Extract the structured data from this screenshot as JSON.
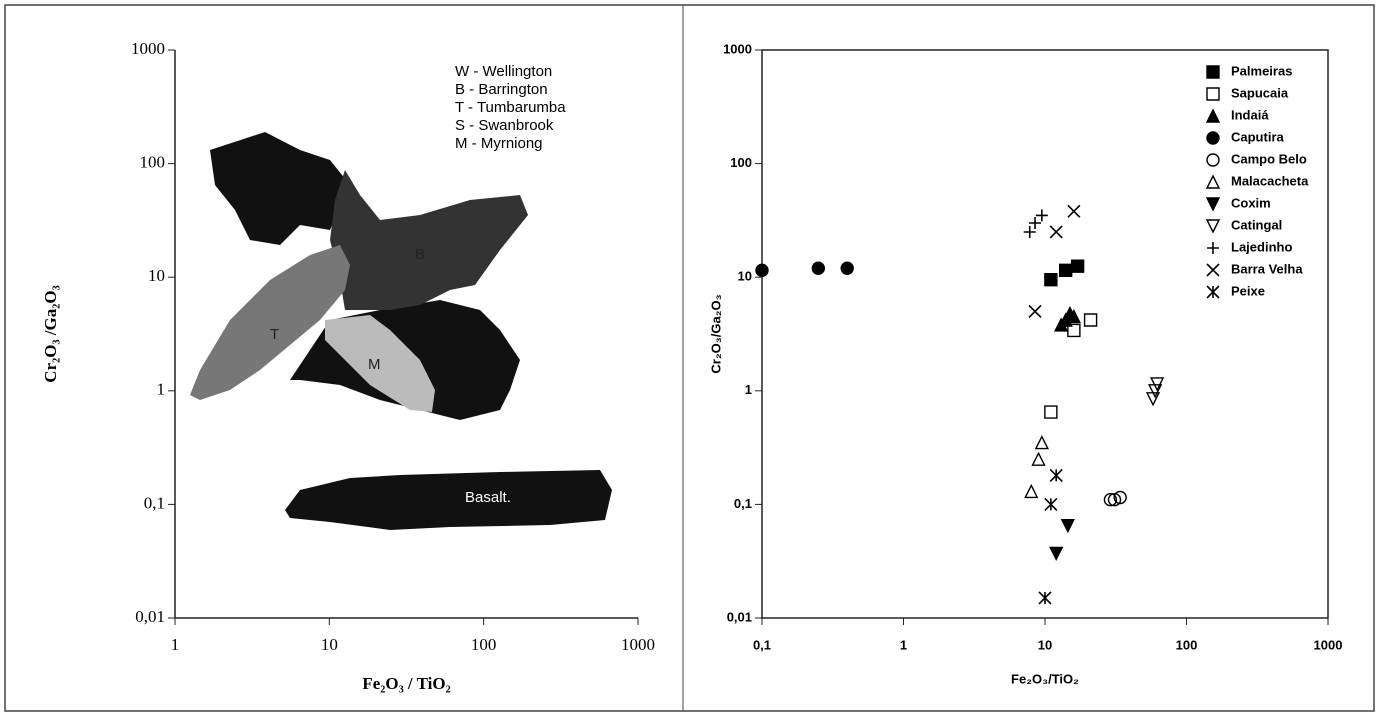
{
  "chart_data": [
    {
      "type": "field",
      "xlabel": "Fe₂O₃ / TiO₂",
      "ylabel": "Cr₂O₃ /Ga₂O₃",
      "xscale": "log",
      "yscale": "log",
      "xlim": [
        1,
        1000
      ],
      "ylim": [
        0.01,
        1000
      ],
      "xticks": [
        1,
        10,
        100,
        1000
      ],
      "yticks": [
        {
          "value": 0.01,
          "label": "0,01"
        },
        {
          "value": 0.1,
          "label": "0,1"
        },
        1,
        10,
        100,
        1000
      ],
      "legend_text": [
        "W - Wellington",
        "B - Barrington",
        "T - Tumbarumba",
        "S - Swanbrook",
        "M - Myrniong"
      ],
      "annotations": [
        "B",
        "T",
        "M",
        "Basalt."
      ]
    },
    {
      "type": "scatter",
      "xlabel": "Fe₂O₃/TiO₂",
      "ylabel": "Cr₂O₃/Ga₂O₃",
      "xscale": "log",
      "yscale": "log",
      "xlim": [
        0.1,
        1000
      ],
      "ylim": [
        0.01,
        1000
      ],
      "xticks": [
        {
          "value": 0.1,
          "label": "0,1"
        },
        1,
        10,
        100,
        1000
      ],
      "yticks": [
        {
          "value": 0.01,
          "label": "0,01"
        },
        {
          "value": 0.1,
          "label": "0,1"
        },
        1,
        10,
        100,
        1000
      ],
      "legend": "upper right",
      "series": [
        {
          "name": "Palmeiras",
          "marker": "square-filled",
          "color": "#000000",
          "x": [
            11,
            14,
            17
          ],
          "values": [
            9.5,
            11.5,
            12.5
          ]
        },
        {
          "name": "Sapucaia",
          "marker": "square-open",
          "color": "#000000",
          "x": [
            11,
            16,
            21
          ],
          "values": [
            0.65,
            3.4,
            4.2
          ]
        },
        {
          "name": "Indaiá",
          "marker": "triangle-filled",
          "color": "#000000",
          "x": [
            13,
            14,
            15,
            16
          ],
          "values": [
            3.8,
            4.2,
            4.8,
            4.5
          ]
        },
        {
          "name": "Caputira",
          "marker": "circle-filled",
          "color": "#000000",
          "x": [
            0.1,
            0.25,
            0.4
          ],
          "values": [
            11.5,
            12,
            12
          ]
        },
        {
          "name": "Campo Belo",
          "marker": "circle-open",
          "color": "#000000",
          "x": [
            29,
            31,
            34
          ],
          "values": [
            0.11,
            0.11,
            0.115
          ]
        },
        {
          "name": "Malacacheta",
          "marker": "triangle-open",
          "color": "#000000",
          "x": [
            8,
            9,
            9.5
          ],
          "values": [
            0.13,
            0.25,
            0.35
          ]
        },
        {
          "name": "Coxim",
          "marker": "triangle-down-filled",
          "color": "#000000",
          "x": [
            12,
            14.5
          ],
          "values": [
            0.037,
            0.065
          ]
        },
        {
          "name": "Catingal",
          "marker": "triangle-down-open",
          "color": "#000000",
          "x": [
            58,
            60,
            62
          ],
          "values": [
            0.85,
            1.0,
            1.15
          ]
        },
        {
          "name": "Lajedinho",
          "marker": "plus",
          "color": "#000000",
          "x": [
            7.8,
            8.5,
            9.5
          ],
          "values": [
            25,
            30,
            35
          ]
        },
        {
          "name": "Barra Velha",
          "marker": "cross",
          "color": "#000000",
          "x": [
            8.5,
            12,
            16
          ],
          "values": [
            5,
            25,
            38
          ]
        },
        {
          "name": "Peixe",
          "marker": "star",
          "color": "#000000",
          "x": [
            10,
            11,
            12
          ],
          "values": [
            0.015,
            0.1,
            0.18
          ]
        }
      ]
    }
  ]
}
